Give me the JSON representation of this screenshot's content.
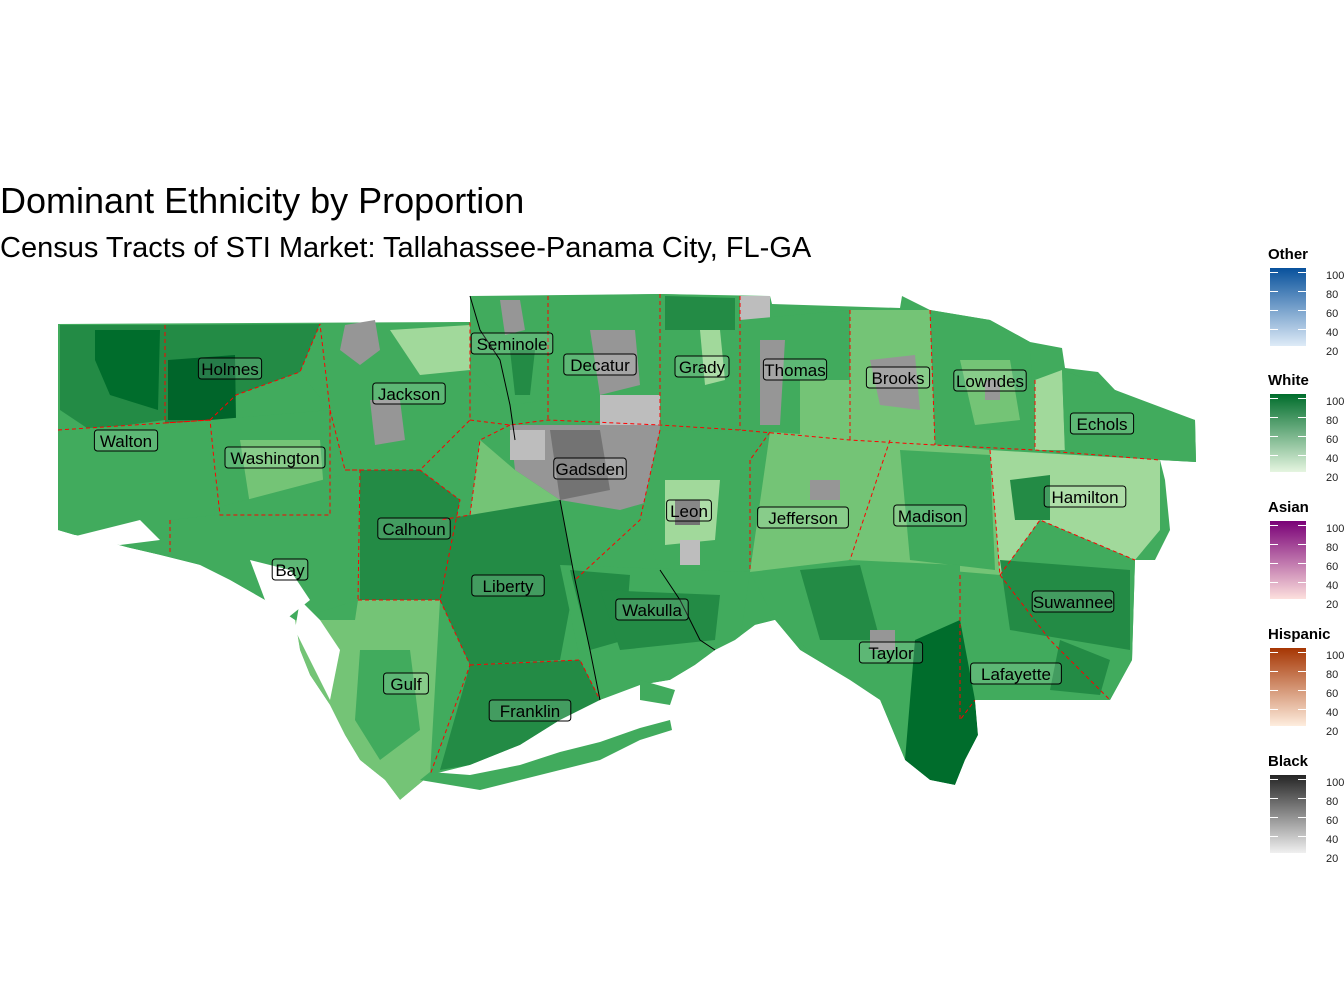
{
  "title": "Dominant Ethnicity by Proportion",
  "subtitle": "Census Tracts of STI Market: Tallahassee-Panama City, FL-GA",
  "counties": [
    {
      "name": "Walton"
    },
    {
      "name": "Holmes"
    },
    {
      "name": "Washington"
    },
    {
      "name": "Jackson"
    },
    {
      "name": "Seminole"
    },
    {
      "name": "Decatur"
    },
    {
      "name": "Grady"
    },
    {
      "name": "Thomas"
    },
    {
      "name": "Brooks"
    },
    {
      "name": "Lowndes"
    },
    {
      "name": "Echols"
    },
    {
      "name": "Gadsden"
    },
    {
      "name": "Leon"
    },
    {
      "name": "Jefferson"
    },
    {
      "name": "Madison"
    },
    {
      "name": "Hamilton"
    },
    {
      "name": "Calhoun"
    },
    {
      "name": "Bay"
    },
    {
      "name": "Liberty"
    },
    {
      "name": "Wakulla"
    },
    {
      "name": "Suwannee"
    },
    {
      "name": "Taylor"
    },
    {
      "name": "Gulf"
    },
    {
      "name": "Franklin"
    },
    {
      "name": "Lafayette"
    }
  ],
  "legends": [
    {
      "title": "Other",
      "colors": [
        "#deebf7",
        "#08519c"
      ],
      "ticks": [
        "100",
        "80",
        "60",
        "40",
        "20"
      ]
    },
    {
      "title": "White",
      "colors": [
        "#e5f5e0",
        "#006d2c"
      ],
      "ticks": [
        "100",
        "80",
        "60",
        "40",
        "20"
      ]
    },
    {
      "title": "Asian",
      "colors": [
        "#fde0dd",
        "#7a0177"
      ],
      "ticks": [
        "100",
        "80",
        "60",
        "40",
        "20"
      ]
    },
    {
      "title": "Hispanic",
      "colors": [
        "#feedde",
        "#a63603"
      ],
      "ticks": [
        "100",
        "80",
        "60",
        "40",
        "20"
      ]
    },
    {
      "title": "Black",
      "colors": [
        "#f0f0f0",
        "#252525"
      ],
      "ticks": [
        "100",
        "80",
        "60",
        "40",
        "20"
      ]
    }
  ]
}
